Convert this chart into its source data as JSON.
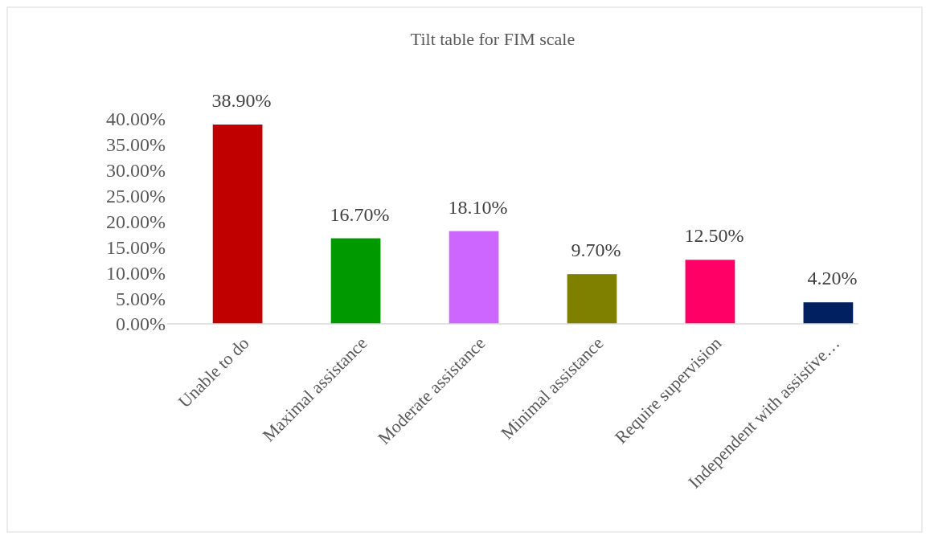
{
  "chart_data": {
    "type": "bar",
    "title": "Tilt table for FIM scale",
    "categories": [
      "Unable to do",
      "Maximal assistance",
      "Moderate assistance",
      "Minimal assistance",
      "Require supervision",
      "Independent with assistive…"
    ],
    "values": [
      38.9,
      16.7,
      18.1,
      9.7,
      12.5,
      4.2
    ],
    "colors": [
      "#c00000",
      "#009900",
      "#cc66ff",
      "#808000",
      "#ff0066",
      "#002060"
    ],
    "value_labels": [
      "38.90%",
      "16.70%",
      "18.10%",
      "9.70%",
      "12.50%",
      "4.20%"
    ],
    "ylim": [
      0,
      40
    ],
    "yticks": [
      {
        "value": 0,
        "label": "0.00%"
      },
      {
        "value": 5,
        "label": "5.00%"
      },
      {
        "value": 10,
        "label": "10.00%"
      },
      {
        "value": 15,
        "label": "15.00%"
      },
      {
        "value": 20,
        "label": "20.00%"
      },
      {
        "value": 25,
        "label": "25.00%"
      },
      {
        "value": 30,
        "label": "30.00%"
      },
      {
        "value": 35,
        "label": "35.00%"
      },
      {
        "value": 40,
        "label": "40.00%"
      }
    ],
    "grid": false
  }
}
